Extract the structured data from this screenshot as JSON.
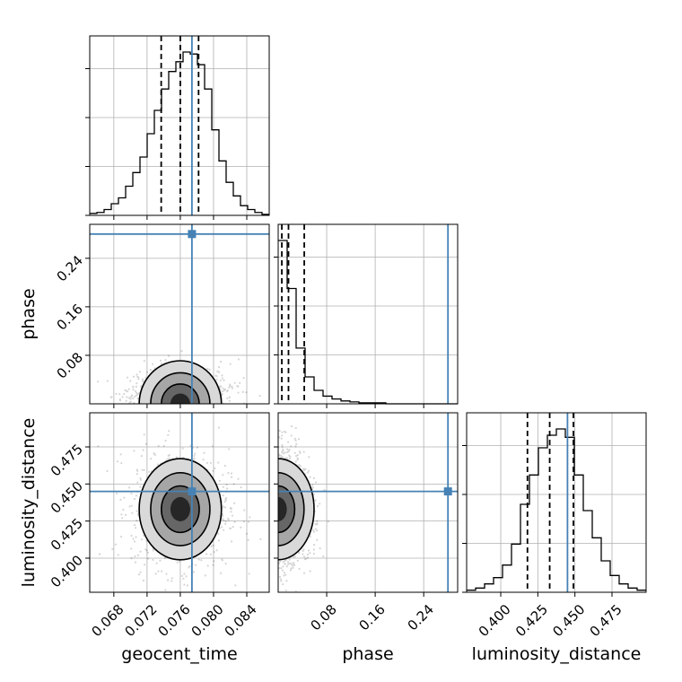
{
  "chart_data": {
    "type": "corner",
    "parameters": [
      "geocent_time",
      "phase",
      "luminosity_distance"
    ],
    "truths": {
      "geocent_time": 0.0774,
      "phase": 0.28,
      "luminosity_distance": 0.445
    },
    "quantiles": {
      "geocent_time": [
        0.0737,
        0.076,
        0.0782
      ],
      "phase": [
        0.006,
        0.017,
        0.043
      ],
      "luminosity_distance": [
        0.418,
        0.433,
        0.449
      ]
    },
    "ranges": {
      "geocent_time": [
        0.0651,
        0.0867
      ],
      "phase": [
        0.0,
        0.296
      ],
      "luminosity_distance": [
        0.377,
        0.498
      ]
    },
    "ticks": {
      "geocent_time": [
        "0.068",
        "0.072",
        "0.076",
        "0.080",
        "0.084"
      ],
      "phase": [
        "0.08",
        "0.16",
        "0.24"
      ],
      "luminosity_distance": [
        "0.400",
        "0.425",
        "0.450",
        "0.475"
      ]
    },
    "histograms": {
      "geocent_time": [
        2,
        3,
        6,
        12,
        18,
        30,
        44,
        60,
        84,
        108,
        130,
        148,
        158,
        168,
        166,
        155,
        130,
        88,
        56,
        34,
        20,
        10,
        6,
        3,
        1
      ],
      "phase": [
        170,
        120,
        58,
        28,
        14,
        8,
        5,
        3,
        2,
        1,
        1,
        1,
        0,
        0,
        0,
        0,
        0,
        0,
        0,
        0
      ],
      "luminosity_distance": [
        2,
        4,
        8,
        14,
        26,
        46,
        84,
        112,
        138,
        150,
        156,
        148,
        112,
        78,
        52,
        30,
        16,
        8,
        4,
        2
      ]
    },
    "xlabels": [
      "geocent_time",
      "phase",
      "luminosity_distance"
    ],
    "ylabels": [
      "phase",
      "luminosity_distance"
    ],
    "grid": true,
    "colors": {
      "truth": "#4682b4",
      "lines": "#000000",
      "points": "#000000"
    }
  }
}
